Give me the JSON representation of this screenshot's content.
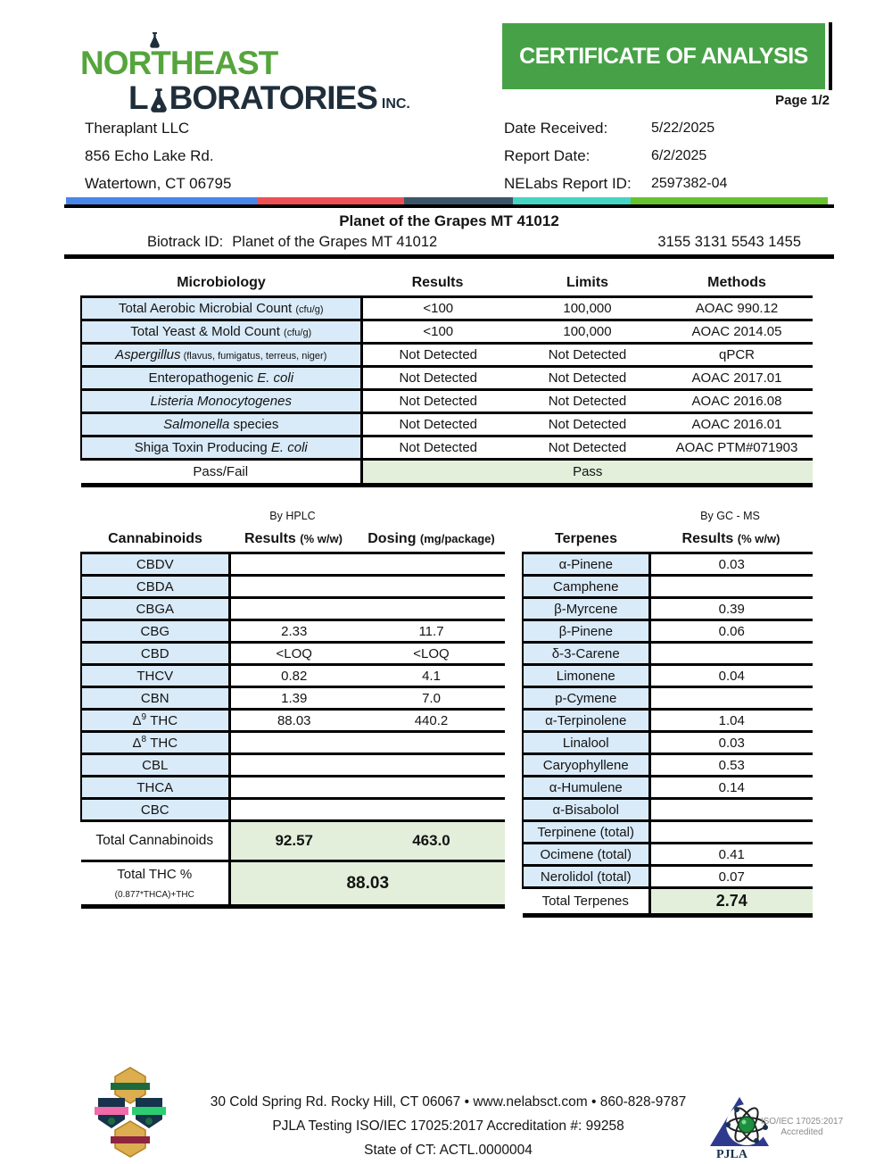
{
  "logo": {
    "word1": "NORTHEAST",
    "word2_pre": "L",
    "word2_post": "BORATORIES",
    "suffix": "INC."
  },
  "banner": {
    "title": "CERTIFICATE OF ANALYSIS",
    "page": "Page 1/2"
  },
  "client": {
    "name": "Theraplant LLC",
    "address1": "856 Echo Lake Rd.",
    "address2": "Watertown, CT 06795"
  },
  "report_info": {
    "date_received_label": "Date Received:",
    "date_received": "5/22/2025",
    "report_date_label": "Report Date:",
    "report_date": "6/2/2025",
    "report_id_label": "NELabs Report ID:",
    "report_id": "2597382-04"
  },
  "sample": {
    "title": "Planet of the Grapes MT 41012",
    "biotrack_label": "Biotrack ID:",
    "biotrack_value": "Planet of the Grapes MT 41012",
    "biotrack_id": "3155 3131 5543 1455"
  },
  "microbiology": {
    "headers": [
      "Microbiology",
      "Results",
      "Limits",
      "Methods"
    ],
    "rows": [
      {
        "name": [
          {
            "t": "Total Aerobic Microbial Count "
          },
          {
            "t": "(cfu/g)",
            "s": true
          }
        ],
        "result": "<100",
        "limit": "100,000",
        "method": "AOAC 990.12"
      },
      {
        "name": [
          {
            "t": "Total Yeast & Mold Count "
          },
          {
            "t": "(cfu/g)",
            "s": true
          }
        ],
        "result": "<100",
        "limit": "100,000",
        "method": "AOAC 2014.05"
      },
      {
        "name": [
          {
            "t": "Aspergillus",
            "i": true
          },
          {
            "t": "  (flavus, fumigatus, terreus, niger)",
            "s": true
          }
        ],
        "result": "Not Detected",
        "limit": "Not Detected",
        "method": "qPCR"
      },
      {
        "name": [
          {
            "t": "Enteropathogenic "
          },
          {
            "t": "E. coli",
            "i": true
          }
        ],
        "result": "Not Detected",
        "limit": "Not Detected",
        "method": "AOAC 2017.01"
      },
      {
        "name": [
          {
            "t": "Listeria Monocytogenes",
            "i": true
          }
        ],
        "result": "Not Detected",
        "limit": "Not Detected",
        "method": "AOAC 2016.08"
      },
      {
        "name": [
          {
            "t": "Salmonella",
            "i": true
          },
          {
            "t": " species"
          }
        ],
        "result": "Not Detected",
        "limit": "Not Detected",
        "method": "AOAC 2016.01"
      },
      {
        "name": [
          {
            "t": "Shiga Toxin Producing "
          },
          {
            "t": "E. coli",
            "i": true
          }
        ],
        "result": "Not Detected",
        "limit": "Not Detected",
        "method": "AOAC PTM#071903"
      }
    ],
    "passfail_label": "Pass/Fail",
    "passfail_value": "Pass"
  },
  "cannabinoids": {
    "method_note": "By HPLC",
    "headers": [
      [
        {
          "t": "Cannabinoids"
        }
      ],
      [
        {
          "t": "Results "
        },
        {
          "t": "(% w/w)",
          "s": true
        }
      ],
      [
        {
          "t": "Dosing "
        },
        {
          "t": "(mg/package)",
          "s": true
        }
      ]
    ],
    "rows": [
      {
        "name": "CBDV",
        "result": "",
        "dosing": ""
      },
      {
        "name": "CBDA",
        "result": "",
        "dosing": ""
      },
      {
        "name": "CBGA",
        "result": "",
        "dosing": ""
      },
      {
        "name": "CBG",
        "result": "2.33",
        "dosing": "11.7"
      },
      {
        "name": "CBD",
        "result": "<LOQ",
        "dosing": "<LOQ"
      },
      {
        "name": "THCV",
        "result": "0.82",
        "dosing": "4.1"
      },
      {
        "name": "CBN",
        "result": "1.39",
        "dosing": "7.0"
      },
      {
        "name": [
          {
            "t": "Δ"
          },
          {
            "t": "9",
            "sup": true
          },
          {
            "t": " THC"
          }
        ],
        "result": "88.03",
        "dosing": "440.2"
      },
      {
        "name": [
          {
            "t": "Δ"
          },
          {
            "t": "8",
            "sup": true
          },
          {
            "t": " THC"
          }
        ],
        "result": "",
        "dosing": ""
      },
      {
        "name": "CBL",
        "result": "",
        "dosing": ""
      },
      {
        "name": "THCA",
        "result": "",
        "dosing": ""
      },
      {
        "name": "CBC",
        "result": "",
        "dosing": ""
      }
    ],
    "total_label": "Total Cannabinoids",
    "total_result": "92.57",
    "total_dosing": "463.0",
    "total_thc_label": [
      {
        "t": "Total THC % "
      },
      {
        "t": "(0.877*THCA)+THC",
        "sub": true
      }
    ],
    "total_thc_value": "88.03"
  },
  "terpenes": {
    "method_note": "By GC - MS",
    "headers": [
      [
        {
          "t": "Terpenes"
        }
      ],
      [
        {
          "t": "Results "
        },
        {
          "t": "(% w/w)",
          "s": true
        }
      ]
    ],
    "rows": [
      {
        "name": "α-Pinene",
        "result": "0.03"
      },
      {
        "name": "Camphene",
        "result": ""
      },
      {
        "name": "β-Myrcene",
        "result": "0.39"
      },
      {
        "name": "β-Pinene",
        "result": "0.06"
      },
      {
        "name": "δ-3-Carene",
        "result": ""
      },
      {
        "name": "Limonene",
        "result": "0.04"
      },
      {
        "name": "p-Cymene",
        "result": ""
      },
      {
        "name": "α-Terpinolene",
        "result": "1.04"
      },
      {
        "name": "Linalool",
        "result": "0.03"
      },
      {
        "name": "Caryophyllene",
        "result": "0.53"
      },
      {
        "name": "α-Humulene",
        "result": "0.14"
      },
      {
        "name": "α-Bisabolol",
        "result": ""
      },
      {
        "name": "Terpinene (total)",
        "result": ""
      },
      {
        "name": "Ocimene (total)",
        "result": "0.41"
      },
      {
        "name": "Nerolidol (total)",
        "result": "0.07"
      }
    ],
    "total_label": "Total Terpenes",
    "total_value": "2.74"
  },
  "footer": {
    "line1": "30 Cold Spring Rd. Rocky Hill, CT 06067   •   www.nelabsct.com   •   860-828-9787",
    "line2": "PJLA Testing ISO/IEC 17025:2017 Accreditation #: 99258",
    "line3": "State of CT: ACTL.0000004",
    "pjla_label": "PJLA",
    "accred_line1": "ISO/IEC 17025:2017",
    "accred_line2": "Accredited"
  },
  "icons": {
    "flask_icon": "erlenmeyer-flask",
    "emerald_badges_icon": "award-badge-cluster",
    "pjla_logo_icon": "triangle-atom-logo"
  },
  "colors": {
    "banner_green": "#47a247",
    "logo_green": "#55a53c",
    "logo_navy": "#1f2e3a",
    "cell_blue": "#d9eaf8",
    "cell_green": "#e3efdb",
    "bar_blue": "#4a86e8",
    "bar_red": "#ec5053",
    "bar_navy": "#3d5569",
    "bar_teal": "#45d5c4",
    "bar_green": "#67c22f"
  }
}
